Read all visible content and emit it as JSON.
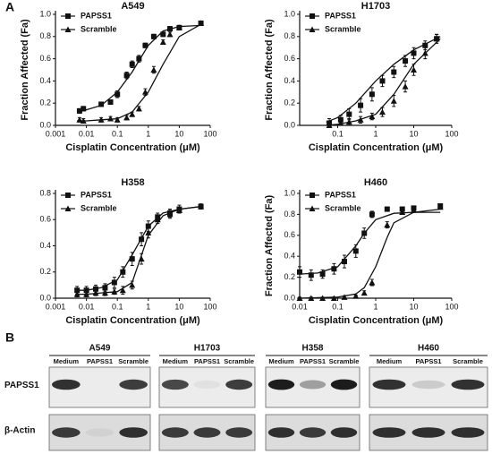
{
  "panel_labels": [
    "A",
    "B"
  ],
  "chart_data": [
    {
      "type": "scatter",
      "title": "A549",
      "xlabel": "Cisplatin Concentration (μM)",
      "ylabel": "Fraction Affected (Fa)",
      "xscale": "log",
      "legend": "upper left",
      "xlim": [
        0.001,
        100
      ],
      "xticks": [
        0.001,
        0.01,
        0.1,
        1,
        10,
        100
      ],
      "ylim": [
        0,
        1
      ],
      "yticks": [
        {
          "value": 0,
          "label": "0.0"
        },
        0.2,
        0.4,
        0.6,
        0.8,
        {
          "value": 1,
          "label": "1.0"
        }
      ],
      "series": [
        {
          "name": "PAPSS1",
          "marker": "square",
          "color": "#111111",
          "x": [
            0.006,
            0.008,
            0.03,
            0.06,
            0.1,
            0.2,
            0.3,
            0.5,
            0.8,
            1.5,
            3,
            5,
            10,
            50
          ],
          "values": [
            0.13,
            0.15,
            0.19,
            0.21,
            0.28,
            0.45,
            0.55,
            0.6,
            0.72,
            0.8,
            0.82,
            0.87,
            0.88,
            0.92
          ],
          "errors": [
            0.02,
            0.02,
            0.02,
            0.02,
            0.03,
            0.03,
            0.03,
            0.03,
            0.02,
            0.02,
            0.02,
            0.02,
            0.02,
            0.02
          ],
          "fit": {
            "x": [
              0.005,
              0.01,
              0.03,
              0.1,
              0.3,
              1,
              3,
              10,
              50
            ],
            "values": [
              0.12,
              0.14,
              0.18,
              0.3,
              0.48,
              0.72,
              0.85,
              0.89,
              0.9
            ]
          }
        },
        {
          "name": "Scramble",
          "marker": "triangle",
          "color": "#111111",
          "x": [
            0.006,
            0.008,
            0.03,
            0.06,
            0.1,
            0.2,
            0.3,
            0.5,
            0.8,
            1.5,
            3,
            5,
            10,
            50
          ],
          "values": [
            0.05,
            0.04,
            0.05,
            0.06,
            0.05,
            0.07,
            0.1,
            0.15,
            0.3,
            0.5,
            0.75,
            0.82,
            0.88,
            0.92
          ],
          "errors": [
            0.02,
            0.02,
            0.02,
            0.02,
            0.02,
            0.02,
            0.02,
            0.02,
            0.03,
            0.03,
            0.02,
            0.02,
            0.02,
            0.02
          ],
          "fit": {
            "x": [
              0.005,
              0.01,
              0.03,
              0.1,
              0.3,
              1,
              3,
              10,
              50
            ],
            "values": [
              0.04,
              0.04,
              0.05,
              0.06,
              0.12,
              0.3,
              0.55,
              0.8,
              0.91
            ]
          }
        }
      ]
    },
    {
      "type": "scatter",
      "title": "H1703",
      "xlabel": "Cisplatin Concentration (μM)",
      "ylabel": "Fraction Affected (Fa)",
      "xscale": "log",
      "legend": "upper left",
      "xlim": [
        0.01,
        100
      ],
      "xticks": [
        0.1,
        1,
        10,
        100
      ],
      "ylim": [
        0,
        1
      ],
      "yticks": [
        {
          "value": 0,
          "label": "0.0"
        },
        0.2,
        0.4,
        0.6,
        0.8,
        {
          "value": 1,
          "label": "1.0"
        }
      ],
      "series": [
        {
          "name": "PAPSS1",
          "marker": "square",
          "color": "#111111",
          "x": [
            0.06,
            0.12,
            0.2,
            0.4,
            0.8,
            1.5,
            3,
            6,
            10,
            20,
            40
          ],
          "values": [
            0.02,
            0.05,
            0.1,
            0.18,
            0.28,
            0.4,
            0.48,
            0.58,
            0.65,
            0.72,
            0.78
          ],
          "errors": [
            0.04,
            0.04,
            0.05,
            0.06,
            0.06,
            0.05,
            0.05,
            0.05,
            0.05,
            0.04,
            0.04
          ],
          "fit": {
            "x": [
              0.05,
              0.1,
              0.3,
              1,
              3,
              10,
              50
            ],
            "values": [
              0.03,
              0.07,
              0.2,
              0.4,
              0.55,
              0.68,
              0.8
            ]
          }
        },
        {
          "name": "Scramble",
          "marker": "triangle",
          "color": "#111111",
          "x": [
            0.06,
            0.12,
            0.2,
            0.4,
            0.8,
            1.5,
            3,
            6,
            10,
            20,
            40
          ],
          "values": [
            0,
            0.02,
            0.03,
            0.05,
            0.08,
            0.12,
            0.22,
            0.35,
            0.5,
            0.65,
            0.78
          ],
          "errors": [
            0.02,
            0.02,
            0.03,
            0.03,
            0.03,
            0.04,
            0.05,
            0.05,
            0.05,
            0.05,
            0.04
          ],
          "fit": {
            "x": [
              0.05,
              0.1,
              0.3,
              1,
              3,
              10,
              50
            ],
            "values": [
              0,
              0.01,
              0.04,
              0.1,
              0.28,
              0.55,
              0.78
            ]
          }
        }
      ]
    },
    {
      "type": "scatter",
      "title": "H358",
      "xlabel": "Cisplatin Concentration (μM)",
      "xscale": "log",
      "legend": "upper left",
      "xlim": [
        0.001,
        100
      ],
      "xticks": [
        0.001,
        0.01,
        0.1,
        1,
        10,
        100
      ],
      "ylim": [
        0,
        0.8
      ],
      "yticks": [
        {
          "value": 0,
          "label": "0.0"
        },
        0.2,
        0.4,
        0.6,
        0.8
      ],
      "series": [
        {
          "name": "PAPSS1",
          "marker": "square",
          "color": "#111111",
          "x": [
            0.005,
            0.01,
            0.02,
            0.04,
            0.08,
            0.15,
            0.3,
            0.6,
            1,
            2,
            5,
            10,
            50
          ],
          "values": [
            0.06,
            0.06,
            0.07,
            0.08,
            0.12,
            0.2,
            0.3,
            0.45,
            0.55,
            0.62,
            0.65,
            0.68,
            0.7
          ],
          "errors": [
            0.03,
            0.03,
            0.03,
            0.03,
            0.04,
            0.04,
            0.05,
            0.05,
            0.04,
            0.03,
            0.03,
            0.03,
            0.02
          ],
          "fit": {
            "x": [
              0.005,
              0.01,
              0.03,
              0.1,
              0.3,
              1,
              3,
              10,
              50
            ],
            "values": [
              0.06,
              0.06,
              0.08,
              0.14,
              0.33,
              0.55,
              0.65,
              0.68,
              0.7
            ]
          }
        },
        {
          "name": "Scramble",
          "marker": "triangle",
          "color": "#111111",
          "x": [
            0.005,
            0.01,
            0.02,
            0.04,
            0.08,
            0.15,
            0.3,
            0.6,
            1,
            2,
            5,
            10,
            50
          ],
          "values": [
            0.03,
            0.03,
            0.04,
            0.04,
            0.05,
            0.06,
            0.1,
            0.3,
            0.5,
            0.6,
            0.64,
            0.67,
            0.7
          ],
          "errors": [
            0.02,
            0.02,
            0.02,
            0.02,
            0.02,
            0.03,
            0.03,
            0.04,
            0.04,
            0.03,
            0.03,
            0.02,
            0.02
          ],
          "fit": {
            "x": [
              0.005,
              0.01,
              0.03,
              0.1,
              0.3,
              1,
              3,
              10,
              50
            ],
            "values": [
              0.03,
              0.03,
              0.04,
              0.05,
              0.12,
              0.48,
              0.63,
              0.68,
              0.7
            ]
          }
        }
      ]
    },
    {
      "type": "scatter",
      "title": "H460",
      "xlabel": "Cisplatin Concentration (μM)",
      "ylabel": "Fraction Affected (Fa)",
      "xscale": "log",
      "legend": "upper left",
      "xlim": [
        0.01,
        100
      ],
      "xticks": [
        0.01,
        0.1,
        1,
        10,
        100
      ],
      "ylim": [
        0,
        1
      ],
      "yticks": [
        {
          "value": 0,
          "label": "0.0"
        },
        0.2,
        0.4,
        0.6,
        0.8,
        {
          "value": 1,
          "label": "1.0"
        }
      ],
      "series": [
        {
          "name": "PAPSS1",
          "marker": "square",
          "color": "#111111",
          "x": [
            0.01,
            0.02,
            0.04,
            0.08,
            0.15,
            0.3,
            0.5,
            0.8,
            2,
            5,
            10,
            50
          ],
          "values": [
            0.25,
            0.22,
            0.23,
            0.28,
            0.35,
            0.45,
            0.62,
            0.8,
            0.85,
            0.85,
            0.86,
            0.88
          ],
          "errors": [
            0.05,
            0.05,
            0.04,
            0.05,
            0.06,
            0.06,
            0.05,
            0.03,
            0.02,
            0.02,
            0.02,
            0.02
          ],
          "fit": {
            "x": [
              0.01,
              0.03,
              0.1,
              0.3,
              0.5,
              1,
              3,
              10,
              50
            ],
            "values": [
              0.23,
              0.24,
              0.3,
              0.5,
              0.62,
              0.75,
              0.81,
              0.82,
              0.82
            ]
          }
        },
        {
          "name": "Scramble",
          "marker": "triangle",
          "color": "#111111",
          "x": [
            0.01,
            0.02,
            0.04,
            0.08,
            0.15,
            0.3,
            0.5,
            0.8,
            2,
            5,
            10,
            50
          ],
          "values": [
            0,
            0,
            0,
            0,
            0.01,
            0.02,
            0.05,
            0.15,
            0.7,
            0.82,
            0.84,
            0.87
          ],
          "errors": [
            0.01,
            0.01,
            0.01,
            0.01,
            0.01,
            0.01,
            0.02,
            0.03,
            0.03,
            0.02,
            0.02,
            0.02
          ],
          "fit": {
            "x": [
              0.01,
              0.1,
              0.3,
              0.5,
              1,
              2,
              3,
              10,
              50
            ],
            "values": [
              0,
              0.01,
              0.04,
              0.1,
              0.3,
              0.58,
              0.72,
              0.82,
              0.85
            ]
          }
        }
      ]
    }
  ],
  "blot": {
    "cell_lines": [
      "A549",
      "H1703",
      "H358",
      "H460"
    ],
    "lanes": [
      "Medium",
      "PAPSS1",
      "Scramble"
    ],
    "rows": [
      "PAPSS1",
      "β-Actin"
    ]
  }
}
